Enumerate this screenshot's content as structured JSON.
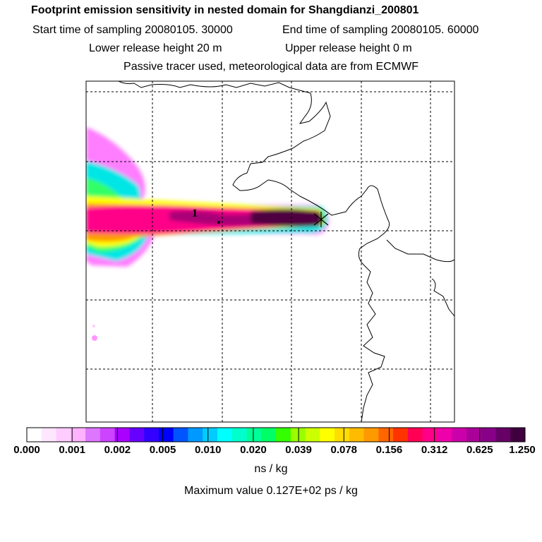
{
  "header": {
    "title": "Footprint emission sensitivity in nested domain for Shangdianzi_200801",
    "start_label": "Start time of sampling 20080105. 30000",
    "end_label": "End time of sampling 20080105. 60000",
    "lower_label": "Lower release height   20 m",
    "upper_label": "Upper release height    0 m",
    "tracer_line": "Passive tracer used, meteorological data are from ECMWF"
  },
  "map": {
    "release_label": "1",
    "plume_colors": [
      "#ff00ff",
      "#00ffff",
      "#00ff66",
      "#ffff00",
      "#ff9900",
      "#ff0088",
      "#aa0077",
      "#500040"
    ]
  },
  "colorbar": {
    "colors": [
      "#ffffff",
      "#ffe6ff",
      "#ffccff",
      "#ffb3ff",
      "#dd77ff",
      "#cc44ff",
      "#aa00ff",
      "#6600ff",
      "#3300ff",
      "#0000ff",
      "#0055ff",
      "#0099ff",
      "#00ccff",
      "#00ffff",
      "#00ffcc",
      "#00ff99",
      "#00ff66",
      "#33ff00",
      "#99ff00",
      "#ccff00",
      "#ffff00",
      "#ffdd00",
      "#ffbb00",
      "#ff9900",
      "#ff6600",
      "#ff3300",
      "#ff0055",
      "#ff0088",
      "#ee00aa",
      "#cc00aa",
      "#aa0099",
      "#880088",
      "#660066",
      "#400040"
    ],
    "ticks": [
      "0.000",
      "0.001",
      "0.002",
      "0.005",
      "0.010",
      "0.020",
      "0.039",
      "0.078",
      "0.156",
      "0.312",
      "0.625",
      "1.250"
    ]
  },
  "units": "ns / kg",
  "max_value": "Maximum value  0.127E+02 ps / kg"
}
